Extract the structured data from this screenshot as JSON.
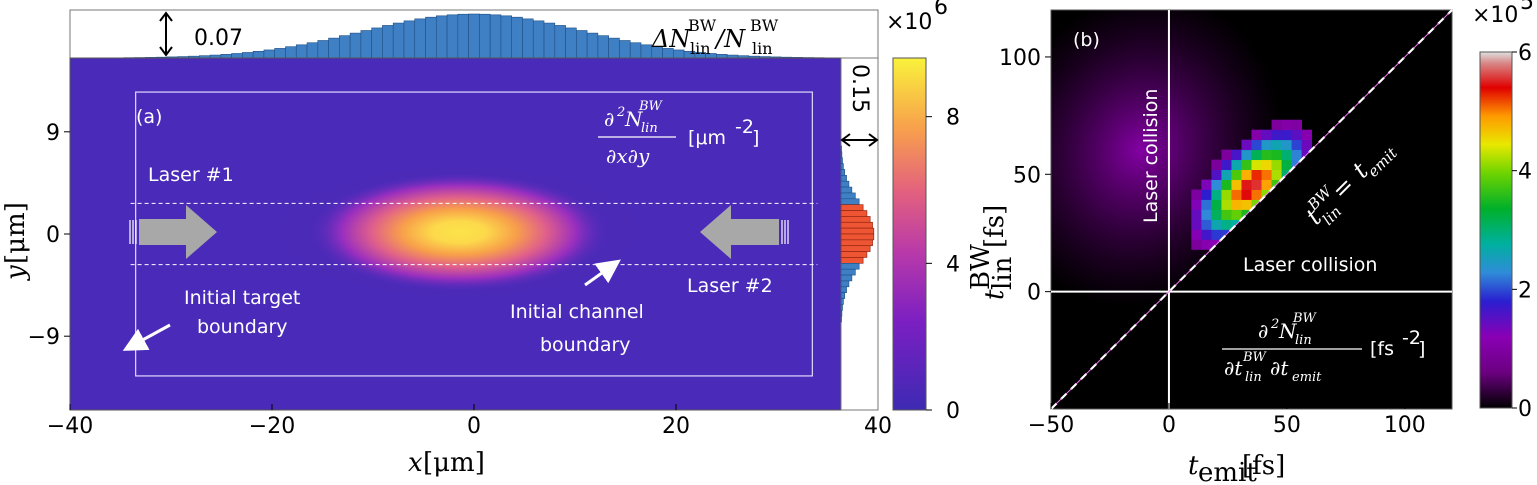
{
  "chart_data": [
    {
      "panel": "(a)",
      "type": "heatmap",
      "xlabel": "x [μm]",
      "ylabel": "y [μm]",
      "xlim": [
        -40,
        40
      ],
      "ylim": [
        -15.5,
        15.5
      ],
      "xticks": [
        "−40",
        "−20",
        "0",
        "20",
        "40"
      ],
      "yticks": [
        "9",
        "0",
        "−9"
      ],
      "colorbar": {
        "label": "∂²N_lin^BW/∂x∂y [μm⁻²]",
        "label_main": "[μm",
        "label_exp": "-2",
        "label_close": "]",
        "multiplier": "×10",
        "multiplier_exp": "6",
        "range": [
          0,
          9.6
        ],
        "ticks": [
          "0",
          "4",
          "8"
        ]
      },
      "peak": {
        "x": 0,
        "y": 0,
        "value": 9.3,
        "sigma_x": 7,
        "sigma_y": 3.2
      },
      "annotations": {
        "laser1": "Laser #1",
        "laser2": "Laser #2",
        "target1": "Initial target",
        "target2": "boundary",
        "channel1": "Initial channel",
        "channel2": "boundary"
      },
      "channel_boundary_y": [
        -2.7,
        2.7
      ],
      "target_boundary": {
        "x": [
          -33.5,
          33.5
        ],
        "y": [
          -12.5,
          12.5
        ]
      },
      "top_histogram": {
        "scale_label": "0.07",
        "label": "ΔN_lin^BW/N_lin^BW",
        "center": 0,
        "sigma": 11,
        "peak": 0.085
      },
      "side_histogram": {
        "scale_label": "0.15",
        "center": 0,
        "sigma": 2.6,
        "peak": 0.2
      }
    },
    {
      "panel": "(b)",
      "type": "heatmap",
      "xlabel": "t_emit [fs]",
      "ylabel": "t_lin^BW [fs]",
      "xlim": [
        -50,
        120
      ],
      "ylim": [
        -50,
        120
      ],
      "xticks": [
        "−50",
        "0",
        "50",
        "100"
      ],
      "yticks": [
        "100",
        "50",
        "0"
      ],
      "colorbar": {
        "label": "∂²N_lin^BW/∂t_lin^BW∂t_emit [fs⁻²]",
        "label_main": "[fs",
        "label_exp": "-2",
        "label_close": "]",
        "multiplier": "×10",
        "multiplier_exp": "5",
        "range": [
          0,
          6
        ],
        "ticks": [
          "0",
          "2",
          "4",
          "6"
        ]
      },
      "peak": {
        "x": 35,
        "y": 45,
        "value": 5.6
      },
      "annotations": {
        "collision_v": "Laser collision",
        "collision_h": "Laser collision",
        "diag": "t_lin^BW = t_emit",
        "diag_eq": " = "
      }
    }
  ]
}
